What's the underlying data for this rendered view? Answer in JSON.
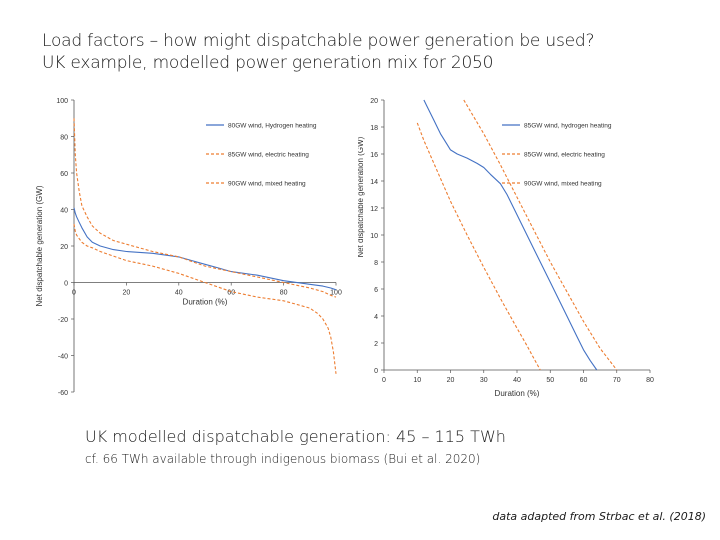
{
  "title": {
    "line1": "Load factors – how might dispatchable power generation be used?",
    "line2": "UK example, modelled power generation mix for 2050"
  },
  "headline": "UK modelled dispatchable generation: 45 – 115 TWh",
  "note": "cf. 66 TWh available through indigenous biomass (Bui et al. 2020)",
  "source": "data adapted from Strbac et al. (2018)",
  "colors": {
    "blue": "#4472c4",
    "orange": "#ed7d31",
    "axis": "#555555",
    "text": "#333333"
  },
  "chart_data": [
    {
      "type": "line",
      "xlabel": "Duration (%)",
      "ylabel": "Net dispatchable generation (GW)",
      "xlim": [
        0,
        100
      ],
      "ylim": [
        -60,
        100
      ],
      "xticks": [
        "0",
        "20",
        "40",
        "60",
        "80",
        "100"
      ],
      "yticks": [
        "-60",
        "-40",
        "-20",
        "0",
        "20",
        "40",
        "60",
        "80",
        "100"
      ],
      "legend_position": "right",
      "series": [
        {
          "name": "80GW wind, Hydrogen heating",
          "color": "#4472c4",
          "dash": "solid",
          "x": [
            0,
            0.5,
            1,
            2,
            3,
            5,
            7,
            10,
            15,
            20,
            30,
            40,
            45,
            50,
            55,
            60,
            70,
            80,
            90,
            95,
            98,
            100
          ],
          "y": [
            41,
            38,
            36,
            33,
            30,
            25,
            22,
            20,
            18,
            17,
            16,
            14,
            12,
            10,
            8,
            6,
            4,
            1,
            -1,
            -2,
            -3,
            -4
          ]
        },
        {
          "name": "85GW wind, electric heating",
          "color": "#ed7d31",
          "dash": "dashed",
          "x": [
            0,
            0.5,
            1,
            2,
            3,
            5,
            7,
            10,
            15,
            20,
            30,
            40,
            50,
            60,
            70,
            80,
            90,
            95,
            98,
            100
          ],
          "y": [
            90,
            70,
            60,
            50,
            42,
            36,
            31,
            27,
            23,
            21,
            17,
            14,
            9,
            6,
            3,
            0,
            -3,
            -5,
            -7,
            -8
          ]
        },
        {
          "name": "90GW wind, mixed heating",
          "color": "#ed7d31",
          "dash": "dashed",
          "x": [
            0,
            0.5,
            1,
            2,
            3,
            5,
            7,
            10,
            20,
            30,
            40,
            50,
            60,
            70,
            80,
            85,
            90,
            93,
            95,
            97,
            98,
            99,
            100
          ],
          "y": [
            32,
            28,
            26,
            24,
            22,
            20,
            19,
            17,
            12,
            9,
            5,
            0,
            -5,
            -8,
            -10,
            -12,
            -14,
            -17,
            -20,
            -25,
            -30,
            -38,
            -50
          ]
        }
      ]
    },
    {
      "type": "line",
      "xlabel": "Duration (%)",
      "ylabel": "Net dispatchable generation (GW)",
      "xlim": [
        0,
        80
      ],
      "ylim": [
        0,
        20
      ],
      "xticks": [
        "0",
        "10",
        "20",
        "30",
        "40",
        "50",
        "60",
        "70",
        "80"
      ],
      "yticks": [
        "0",
        "2",
        "4",
        "6",
        "8",
        "10",
        "12",
        "14",
        "16",
        "18",
        "20"
      ],
      "legend_position": "right",
      "series": [
        {
          "name": "85GW wind, hydrogen heating",
          "color": "#4472c4",
          "dash": "solid",
          "x": [
            12,
            13,
            15,
            17,
            19,
            20,
            22,
            25,
            28,
            30,
            32,
            35,
            37,
            40,
            45,
            50,
            55,
            58,
            60,
            62,
            64
          ],
          "y": [
            20,
            19.5,
            18.5,
            17.5,
            16.7,
            16.3,
            16.0,
            15.7,
            15.3,
            15.0,
            14.5,
            13.8,
            13.0,
            11.5,
            9.0,
            6.5,
            4.0,
            2.5,
            1.5,
            0.7,
            0
          ]
        },
        {
          "name": "85GW wind, electric heating",
          "color": "#ed7d31",
          "dash": "dashed",
          "x": [
            24,
            30,
            35,
            40,
            45,
            50,
            55,
            60,
            65,
            70
          ],
          "y": [
            20,
            17.5,
            15.2,
            12.8,
            10.4,
            8.0,
            5.8,
            3.6,
            1.6,
            0
          ]
        },
        {
          "name": "90GW wind, mixed heating",
          "color": "#ed7d31",
          "dash": "dashed",
          "x": [
            10,
            12,
            15,
            20,
            25,
            30,
            35,
            40,
            43,
            45,
            47
          ],
          "y": [
            18.3,
            17.0,
            15.3,
            12.5,
            10.0,
            7.6,
            5.3,
            3.1,
            1.8,
            0.9,
            0
          ]
        }
      ]
    }
  ]
}
